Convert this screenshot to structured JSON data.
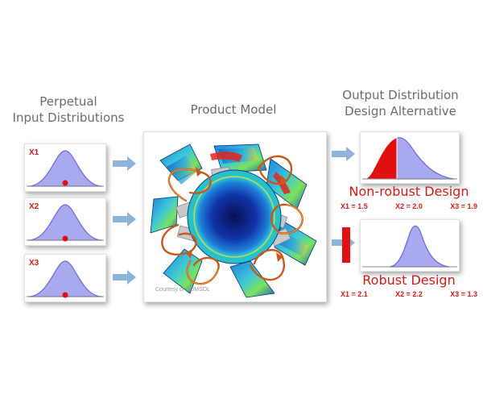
{
  "headings": {
    "input_line1": "Perpetual",
    "input_line2": "Input Distributions",
    "model": "Product Model",
    "output_line1": "Output Distribution",
    "output_line2": "Design Alternative"
  },
  "inputs": [
    {
      "label": "X1"
    },
    {
      "label": "X2"
    },
    {
      "label": "X3"
    }
  ],
  "designs": [
    {
      "title": "Non-robust Design",
      "values": [
        "X1 = 1.5",
        "X2 = 2.0",
        "X3 = 1.9"
      ]
    },
    {
      "title": "Robust Design",
      "values": [
        "X1 = 2.1",
        "X2 = 2.2",
        "X3 = 1.3"
      ]
    }
  ],
  "model_credit": "Courtesy of COMSOL",
  "colors": {
    "curve_fill": "#a9a9ef",
    "curve_stroke": "#6a6ad8",
    "marker_red": "#e01010",
    "arrow": "#8fb4dc",
    "title_red": "#d11a1a"
  },
  "icons": {
    "flow_arrow": "right-arrow",
    "sample_point": "red-dot"
  }
}
